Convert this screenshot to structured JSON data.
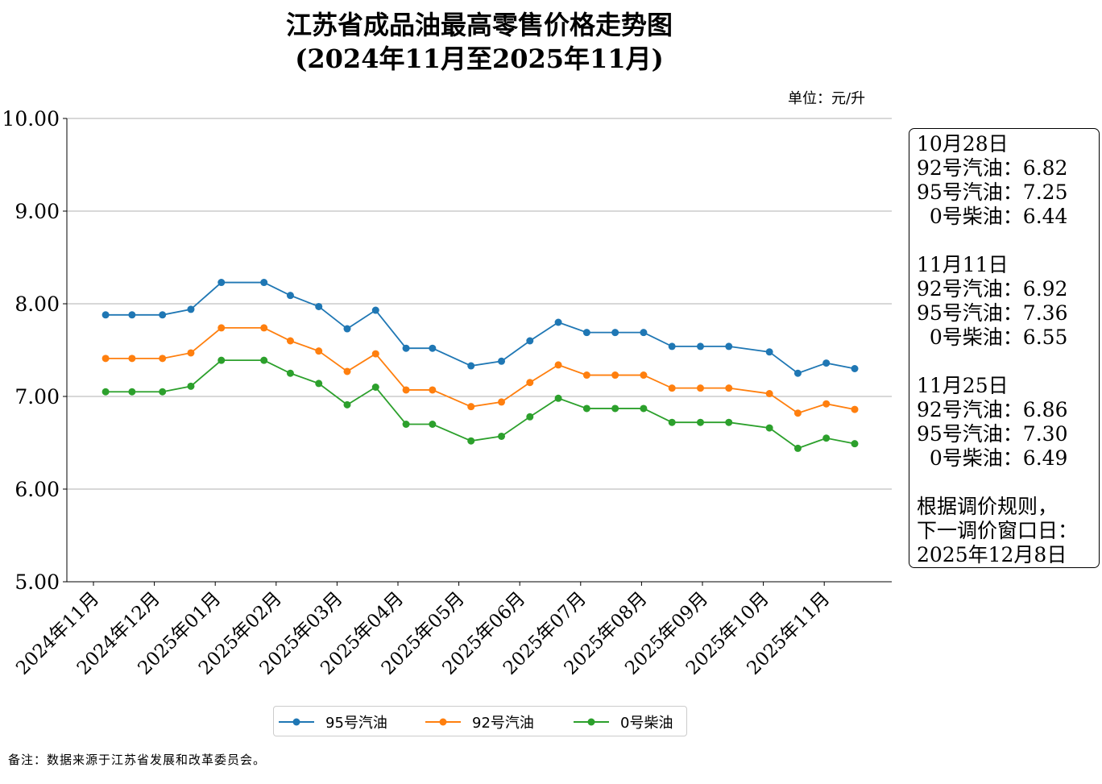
{
  "chart_data": {
    "type": "line",
    "title": "江苏省成品油最高零售价格走势图",
    "subtitle": "(2024年11月至2025年11月)",
    "unit": "单位：元/升",
    "ylim": [
      5,
      10
    ],
    "yticks": [
      "5.00",
      "6.00",
      "7.00",
      "8.00",
      "9.00",
      "10.00"
    ],
    "grid": "horizontal",
    "legend": "bottom",
    "xtick_labels": [
      "2024年11月",
      "2024年12月",
      "2025年01月",
      "2025年02月",
      "2025年03月",
      "2025年04月",
      "2025年05月",
      "2025年06月",
      "2025年07月",
      "2025年08月",
      "2025年09月",
      "2025年10月",
      "2025年11月"
    ],
    "x": [
      "2024-11-21",
      "2024-12-04",
      "2024-12-19",
      "2025-01-02",
      "2025-01-17",
      "2025-02-07",
      "2025-02-20",
      "2025-03-06",
      "2025-03-20",
      "2025-04-03",
      "2025-04-18",
      "2025-05-01",
      "2025-05-20",
      "2025-06-04",
      "2025-06-18",
      "2025-07-02",
      "2025-07-16",
      "2025-07-30",
      "2025-08-13",
      "2025-08-27",
      "2025-09-10",
      "2025-09-24",
      "2025-10-14",
      "2025-10-28",
      "2025-11-11",
      "2025-11-25"
    ],
    "series": [
      {
        "name": "95号汽油",
        "color": "#1f77b4",
        "values": [
          7.88,
          7.88,
          7.88,
          7.94,
          8.23,
          8.23,
          8.09,
          7.97,
          7.73,
          7.93,
          7.52,
          7.52,
          7.33,
          7.38,
          7.6,
          7.8,
          7.69,
          7.69,
          7.69,
          7.54,
          7.54,
          7.54,
          7.48,
          7.25,
          7.36,
          7.3
        ]
      },
      {
        "name": "92号汽油",
        "color": "#ff7f0e",
        "values": [
          7.41,
          7.41,
          7.41,
          7.47,
          7.74,
          7.74,
          7.6,
          7.49,
          7.27,
          7.46,
          7.07,
          7.07,
          6.89,
          6.94,
          7.15,
          7.34,
          7.23,
          7.23,
          7.23,
          7.09,
          7.09,
          7.09,
          7.03,
          6.82,
          6.92,
          6.86
        ]
      },
      {
        "name": "0号柴油",
        "color": "#2ca02c",
        "values": [
          7.05,
          7.05,
          7.05,
          7.11,
          7.39,
          7.39,
          7.25,
          7.14,
          6.91,
          7.1,
          6.7,
          6.7,
          6.52,
          6.57,
          6.78,
          6.98,
          6.87,
          6.87,
          6.87,
          6.72,
          6.72,
          6.72,
          6.66,
          6.44,
          6.55,
          6.49
        ]
      }
    ],
    "annotation": "10月28日\n92号汽油：6.82\n95号汽油：7.25\n  0号柴油：6.44\n\n11月11日\n92号汽油：6.92\n95号汽油：7.36\n  0号柴油：6.55\n\n11月25日\n92号汽油：6.86\n95号汽油：7.30\n  0号柴油：6.49\n\n根据调价规则，\n下一调价窗口日：\n2025年12月8日",
    "note": "备注：数据来源于江苏省发展和改革委员会。"
  }
}
